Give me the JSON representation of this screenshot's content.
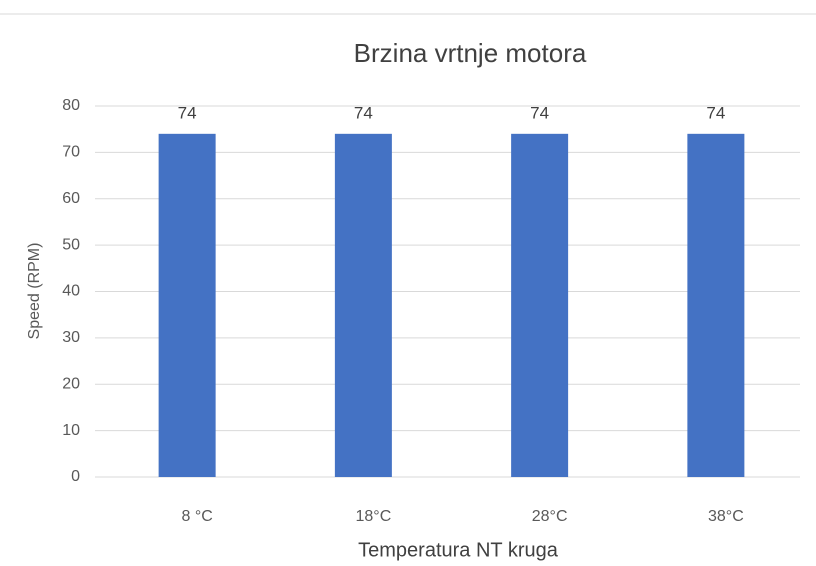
{
  "chart_data": {
    "type": "bar",
    "title": "Brzina vrtnje motora",
    "x_label": "Temperatura NT kruga",
    "y_label": "Speed (RPM)",
    "categories": [
      "8 °C",
      "18°C",
      "28°C",
      "38°C"
    ],
    "values": [
      74,
      74,
      74,
      74
    ],
    "color": "#4472c4",
    "ylim": [
      0,
      80
    ],
    "yticks": [
      0,
      10,
      20,
      30,
      40,
      50,
      60,
      70,
      80
    ],
    "grid": true,
    "data_labels": true
  }
}
